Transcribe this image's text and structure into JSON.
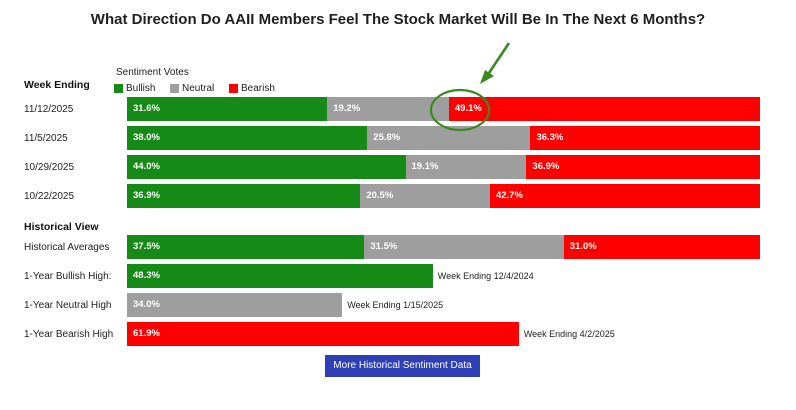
{
  "title": "What Direction Do AAII Members Feel The Stock Market Will Be In The Next 6 Months?",
  "section_week_ending": "Week Ending",
  "section_historical": "Historical View",
  "legend": {
    "heading": "Sentiment Votes",
    "bullish": "Bullish",
    "neutral": "Neutral",
    "bearish": "Bearish"
  },
  "button_label": "More Historical Sentiment Data",
  "colors": {
    "bullish": "#168a16",
    "neutral": "#9e9e9e",
    "bearish": "#ff0000",
    "button": "#2f3fb5",
    "annotation": "#3a8a1f"
  },
  "chart_data": {
    "type": "bar",
    "stacked": true,
    "weekly": [
      {
        "label": "11/12/2025",
        "bullish": 31.6,
        "neutral": 19.2,
        "bearish": 49.1,
        "bullish_text": "31.6%",
        "neutral_text": "19.2%",
        "bearish_text": "49.1%",
        "highlight": "bearish"
      },
      {
        "label": "11/5/2025",
        "bullish": 38.0,
        "neutral": 25.8,
        "bearish": 36.3,
        "bullish_text": "38.0%",
        "neutral_text": "25.8%",
        "bearish_text": "36.3%"
      },
      {
        "label": "10/29/2025",
        "bullish": 44.0,
        "neutral": 19.1,
        "bearish": 36.9,
        "bullish_text": "44.0%",
        "neutral_text": "19.1%",
        "bearish_text": "36.9%"
      },
      {
        "label": "10/22/2025",
        "bullish": 36.9,
        "neutral": 20.5,
        "bearish": 42.7,
        "bullish_text": "36.9%",
        "neutral_text": "20.5%",
        "bearish_text": "42.7%"
      }
    ],
    "historical_averages": {
      "label": "Historical Averages",
      "bullish": 37.5,
      "neutral": 31.5,
      "bearish": 31.0,
      "bullish_text": "37.5%",
      "neutral_text": "31.5%",
      "bearish_text": "31.0%"
    },
    "highs": [
      {
        "label": "1-Year Bullish High:",
        "kind": "bullish",
        "value": 48.3,
        "value_text": "48.3%",
        "note": "Week Ending 12/4/2024"
      },
      {
        "label": "1-Year Neutral High",
        "kind": "neutral",
        "value": 34.0,
        "value_text": "34.0%",
        "note": "Week Ending 1/15/2025"
      },
      {
        "label": "1-Year Bearish High",
        "kind": "bearish",
        "value": 61.9,
        "value_text": "61.9%",
        "note": "Week Ending 4/2/2025"
      }
    ]
  }
}
